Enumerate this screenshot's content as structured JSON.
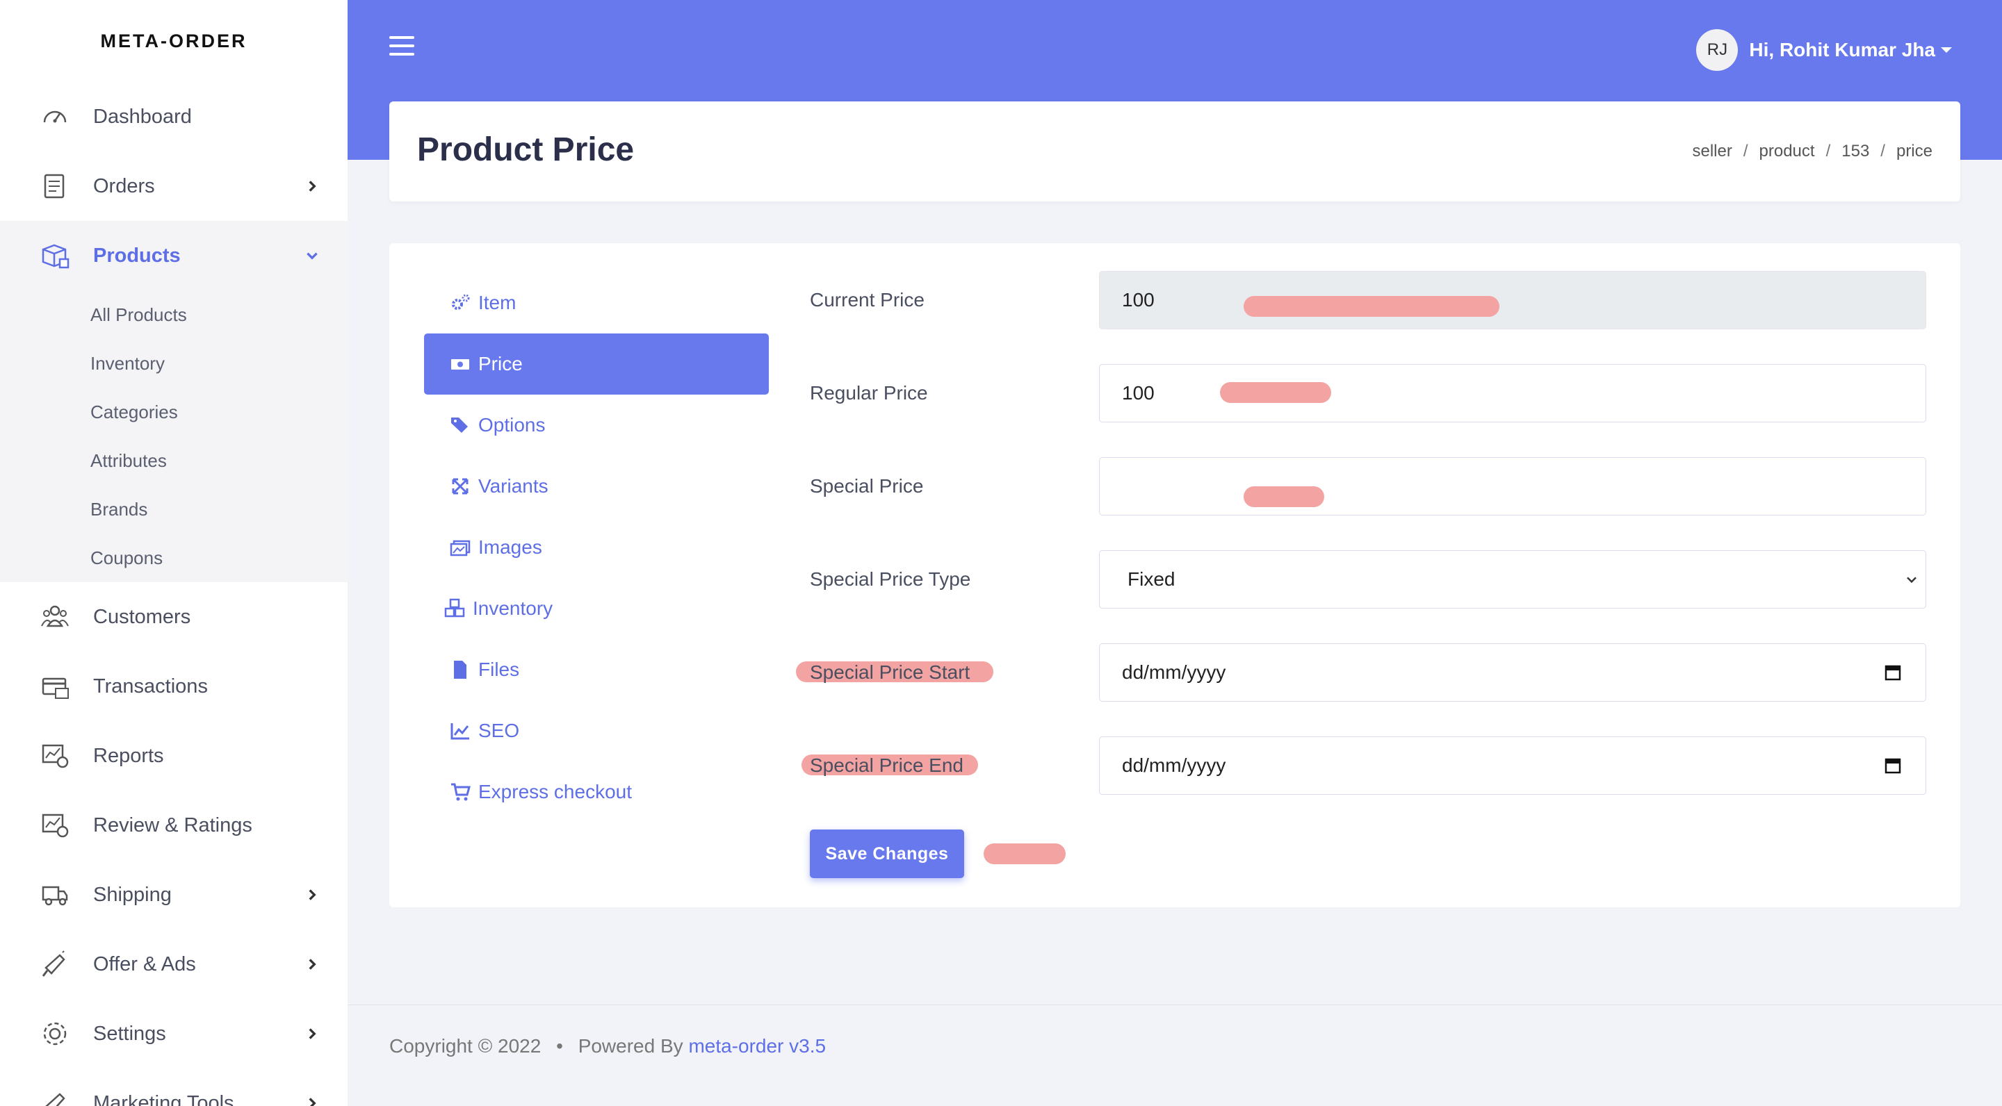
{
  "brand": "META-ORDER",
  "sidebar": {
    "items": [
      {
        "label": "Dashboard",
        "icon": "gauge-icon"
      },
      {
        "label": "Orders",
        "icon": "clipboard-list-icon"
      },
      {
        "label": "Products",
        "icon": "boxes-icon"
      },
      {
        "label": "Customers",
        "icon": "users-icon"
      },
      {
        "label": "Transactions",
        "icon": "card-cash-icon"
      },
      {
        "label": "Reports",
        "icon": "chart-report-icon"
      },
      {
        "label": "Review & Ratings",
        "icon": "review-icon"
      },
      {
        "label": "Shipping",
        "icon": "truck-icon"
      },
      {
        "label": "Offer & Ads",
        "icon": "megaphone-icon"
      },
      {
        "label": "Settings",
        "icon": "gear-icon"
      },
      {
        "label": "Marketing Tools",
        "icon": "bullhorn-icon"
      }
    ],
    "products_sub": [
      "All Products",
      "Inventory",
      "Categories",
      "Attributes",
      "Brands",
      "Coupons"
    ]
  },
  "header": {
    "avatar_initials": "RJ",
    "user_greeting": "Hi, Rohit Kumar Jha"
  },
  "page": {
    "title": "Product Price",
    "breadcrumb": [
      "seller",
      "product",
      "153",
      "price"
    ]
  },
  "tabs": [
    {
      "label": "Item",
      "icon": "cogs-icon"
    },
    {
      "label": "Price",
      "icon": "money-bill-icon"
    },
    {
      "label": "Options",
      "icon": "tags-icon"
    },
    {
      "label": "Variants",
      "icon": "expand-arrows-icon"
    },
    {
      "label": "Images",
      "icon": "images-icon"
    },
    {
      "label": "Inventory",
      "icon": "cubes-icon"
    },
    {
      "label": "Files",
      "icon": "file-icon"
    },
    {
      "label": "SEO",
      "icon": "line-chart-icon"
    },
    {
      "label": "Express checkout",
      "icon": "cart-icon"
    }
  ],
  "form": {
    "current_price": {
      "label": "Current Price",
      "value": "100"
    },
    "regular_price": {
      "label": "Regular Price",
      "value": "100"
    },
    "special_price": {
      "label": "Special Price",
      "value": ""
    },
    "special_price_type": {
      "label": "Special Price Type",
      "value": "Fixed"
    },
    "special_price_start": {
      "label": "Special Price Start",
      "placeholder": "dd/mm/yyyy"
    },
    "special_price_end": {
      "label": "Special Price End",
      "placeholder": "dd/mm/yyyy"
    },
    "save_label": "Save Changes"
  },
  "footer": {
    "copyright": "Copyright © 2022",
    "bullet": "•",
    "powered_by": "Powered By",
    "link_text": "meta-order v3.5"
  },
  "colors": {
    "accent": "#6879ee",
    "link": "#5e6fe6",
    "redaction": "#f4a3a3"
  }
}
